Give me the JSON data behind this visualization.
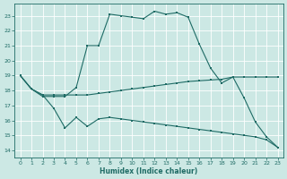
{
  "xlabel": "Humidex (Indice chaleur)",
  "xlim": [
    -0.5,
    23.5
  ],
  "ylim": [
    13.5,
    23.8
  ],
  "yticks": [
    14,
    15,
    16,
    17,
    18,
    19,
    20,
    21,
    22,
    23
  ],
  "xticks": [
    0,
    1,
    2,
    3,
    4,
    5,
    6,
    7,
    8,
    9,
    10,
    11,
    12,
    13,
    14,
    15,
    16,
    17,
    18,
    19,
    20,
    21,
    22,
    23
  ],
  "bg_color": "#cce8e4",
  "line_color": "#1e6b65",
  "grid_color": "#ffffff",
  "lines": [
    {
      "x": [
        0,
        1,
        2,
        3,
        4,
        5,
        6,
        7,
        8,
        9,
        10,
        11,
        12,
        13,
        14,
        15,
        16,
        17,
        18,
        19,
        20,
        21,
        22,
        23
      ],
      "y": [
        19.0,
        18.1,
        17.6,
        17.6,
        17.6,
        18.2,
        21.0,
        21.0,
        23.1,
        23.0,
        22.9,
        22.8,
        23.3,
        23.1,
        23.2,
        22.9,
        21.1,
        19.5,
        18.5,
        18.9,
        17.5,
        15.9,
        14.9,
        14.2
      ]
    },
    {
      "x": [
        0,
        1,
        2,
        3,
        4,
        5,
        6,
        7,
        8,
        9,
        10,
        11,
        12,
        13,
        14,
        15,
        16,
        17,
        18,
        19,
        20,
        21,
        22,
        23
      ],
      "y": [
        19.0,
        18.1,
        17.7,
        17.7,
        17.7,
        17.7,
        17.7,
        17.8,
        17.9,
        18.0,
        18.1,
        18.2,
        18.3,
        18.4,
        18.5,
        18.6,
        18.65,
        18.7,
        18.75,
        18.9,
        18.9,
        18.9,
        18.9,
        18.9
      ]
    },
    {
      "x": [
        0,
        1,
        2,
        3,
        4,
        5,
        6,
        7,
        8,
        9,
        10,
        11,
        12,
        13,
        14,
        15,
        16,
        17,
        18,
        19,
        20,
        21,
        22,
        23
      ],
      "y": [
        19.0,
        18.1,
        17.7,
        16.8,
        15.5,
        16.2,
        15.6,
        16.1,
        16.2,
        16.1,
        16.0,
        15.9,
        15.8,
        15.7,
        15.6,
        15.5,
        15.4,
        15.3,
        15.2,
        15.1,
        15.0,
        14.9,
        14.7,
        14.2
      ]
    }
  ]
}
